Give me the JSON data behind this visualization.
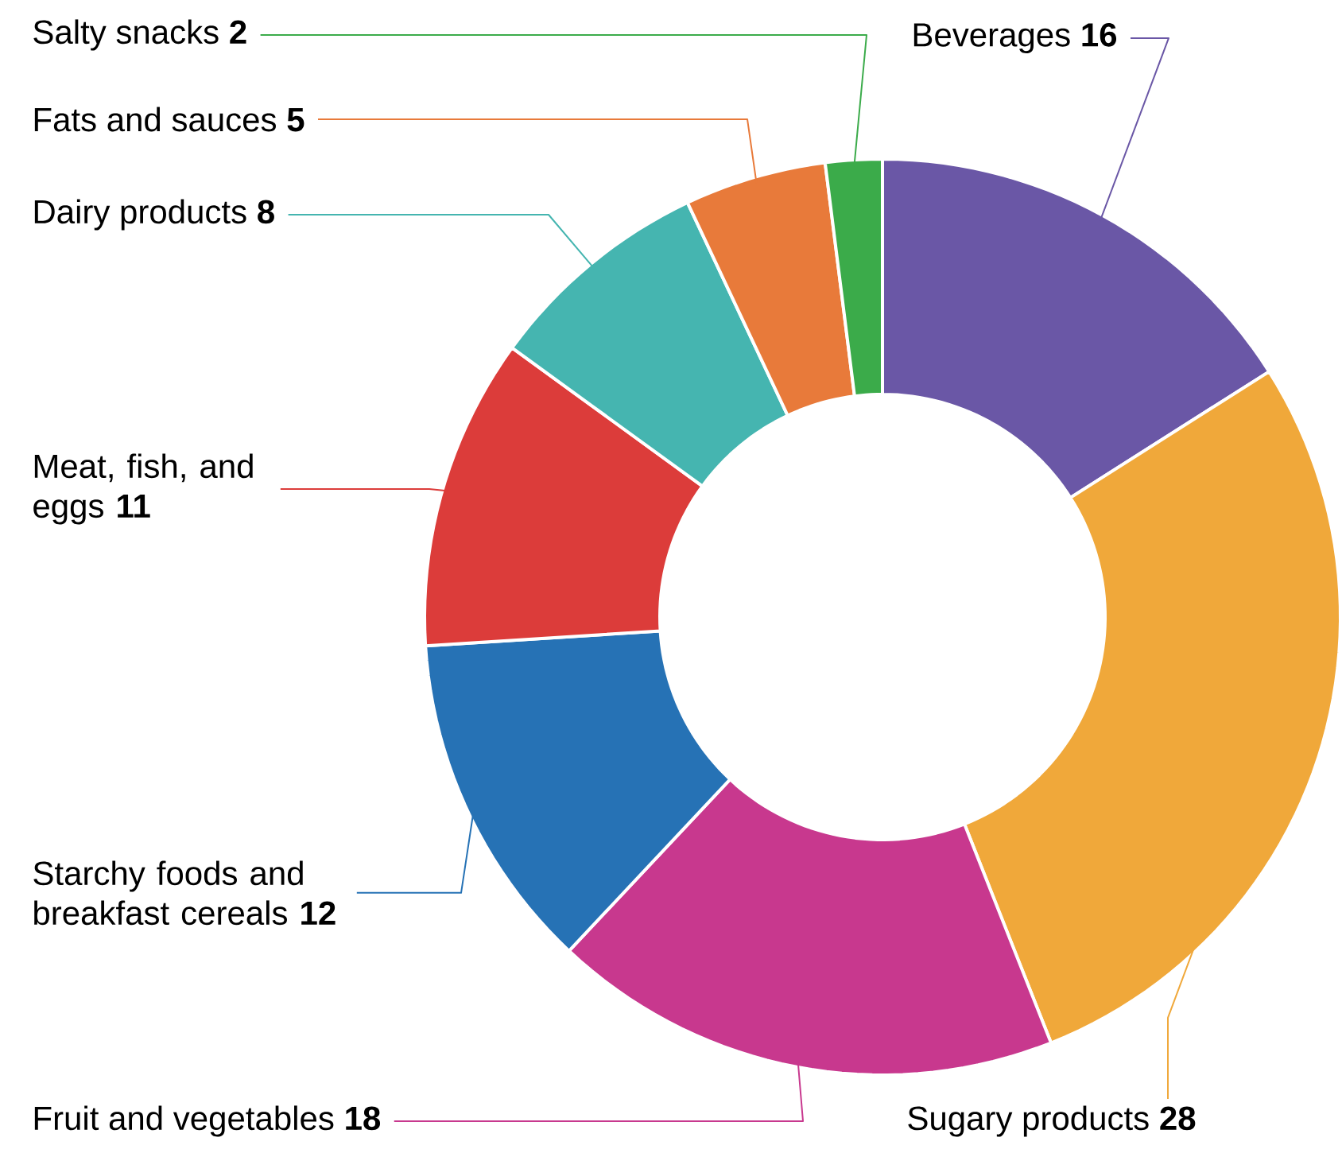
{
  "chart_data": {
    "type": "donut",
    "categories": [
      "Beverages",
      "Sugary products",
      "Fruit and vegetables",
      "Starchy foods and breakfast cereals",
      "Meat, fish, and eggs",
      "Dairy products",
      "Fats and sauces",
      "Salty snacks"
    ],
    "values": [
      16,
      28,
      18,
      12,
      11,
      8,
      5,
      2
    ],
    "colors": [
      "#6a57a6",
      "#f0a83a",
      "#c8388e",
      "#2672b5",
      "#dc3c3a",
      "#45b5b0",
      "#e87a3a",
      "#3bab4a"
    ],
    "data_labels": true
  }
}
